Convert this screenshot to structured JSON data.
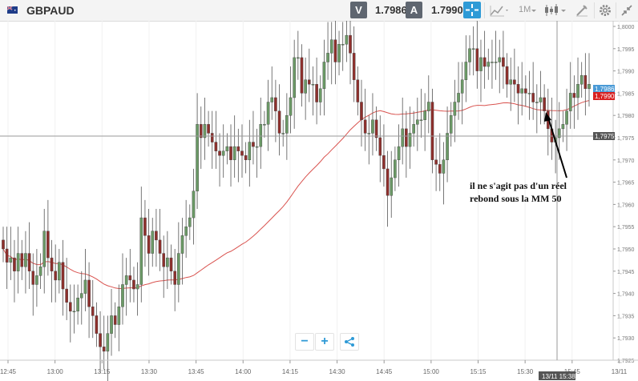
{
  "toolbar": {
    "symbol": "GBPAUD",
    "sell_label": "V",
    "sell_price": "1.7986",
    "buy_label": "A",
    "buy_price": "1.7990",
    "timeframe": "1M",
    "icons": [
      "flag-icon",
      "crosshair-icon",
      "line-chart-icon",
      "candlestick-icon",
      "draw-icon",
      "gear-icon",
      "collapse-icon"
    ],
    "colors": {
      "accent": "#2e9ad6",
      "button": "#5f6670"
    }
  },
  "chart_data": {
    "type": "candlestick",
    "title": "",
    "xlabel": "",
    "ylabel": "",
    "ylim": [
      1.7925,
      1.8
    ],
    "y_ticks": [
      "1,8000",
      "1,7995",
      "1,7990",
      "1,7985",
      "1,7980",
      "1,7975",
      "1,7970",
      "1,7965",
      "1,7960",
      "1,7955",
      "1,7950",
      "1,7945",
      "1,7940",
      "1,7935",
      "1,7930",
      "1,7925"
    ],
    "x_ticks": [
      "12:45",
      "13:00",
      "13:15",
      "13:30",
      "13:45",
      "14:00",
      "14:15",
      "14:30",
      "14:45",
      "15:00",
      "15:15",
      "15:30",
      "15:45",
      "13/11"
    ],
    "bid_marker": "1,7986",
    "ask_marker": "1,7990",
    "crosshair_price": "1,7975",
    "crosshair_time": "13/11 15:38",
    "grid": true,
    "colors": {
      "up": "#6b9a66",
      "down": "#8e2f2c",
      "ma": "#d9534f"
    },
    "candles_close": [
      1.795,
      1.7947,
      1.7948,
      1.7945,
      1.7949,
      1.7946,
      1.7949,
      1.7945,
      1.7942,
      1.7944,
      1.7946,
      1.7954,
      1.7948,
      1.7945,
      1.7943,
      1.7947,
      1.7941,
      1.7938,
      1.7936,
      1.7936,
      1.7939,
      1.794,
      1.7943,
      1.7937,
      1.7935,
      1.7931,
      1.7928,
      1.7927,
      1.7931,
      1.7935,
      1.7933,
      1.7937,
      1.7942,
      1.7944,
      1.7943,
      1.7941,
      1.7942,
      1.7957,
      1.7953,
      1.7949,
      1.7954,
      1.7952,
      1.7949,
      1.7946,
      1.7948,
      1.7945,
      1.7942,
      1.7949,
      1.7953,
      1.7955,
      1.7957,
      1.7963,
      1.7978,
      1.7975,
      1.7978,
      1.7976,
      1.7974,
      1.7972,
      1.7971,
      1.7972,
      1.7973,
      1.797,
      1.7973,
      1.7972,
      1.7971,
      1.797,
      1.7974,
      1.7973,
      1.7973,
      1.7978,
      1.7978,
      1.7983,
      1.7984,
      1.7981,
      1.7976,
      1.7976,
      1.798,
      1.7984,
      1.7993,
      1.7993,
      1.7985,
      1.7988,
      1.7987,
      1.7987,
      1.7983,
      1.7986,
      1.7992,
      1.7994,
      1.7997,
      1.7992,
      1.7996,
      1.7996,
      1.7998,
      1.7994,
      1.7988,
      1.7983,
      1.7979,
      1.7976,
      1.7976,
      1.7979,
      1.7975,
      1.7971,
      1.7968,
      1.7962,
      1.7966,
      1.797,
      1.7973,
      1.7977,
      1.7973,
      1.7976,
      1.7978,
      1.7979,
      1.7979,
      1.7981,
      1.7983,
      1.797,
      1.7969,
      1.7967,
      1.797,
      1.7976,
      1.798,
      1.7983,
      1.7985,
      1.7988,
      1.7992,
      1.7995,
      1.7995,
      1.799,
      1.7993,
      1.7991,
      1.7992,
      1.7992,
      1.7992,
      1.7993,
      1.7991,
      1.7987,
      1.7988,
      1.7987,
      1.7985,
      1.7986,
      1.7985,
      1.7985,
      1.7983,
      1.7983,
      1.7984,
      1.7981,
      1.7977,
      1.7974,
      1.7975,
      1.7977,
      1.7978,
      1.7981,
      1.7985,
      1.7984,
      1.7987,
      1.7989,
      1.7986,
      1.7987
    ]
  },
  "annotation": {
    "line1": "il ne s'agit pas d'un réel",
    "line2": "rebond sous la MM 50"
  },
  "zoom": {
    "minus": "−",
    "plus": "+",
    "share_icon": "share-icon"
  }
}
